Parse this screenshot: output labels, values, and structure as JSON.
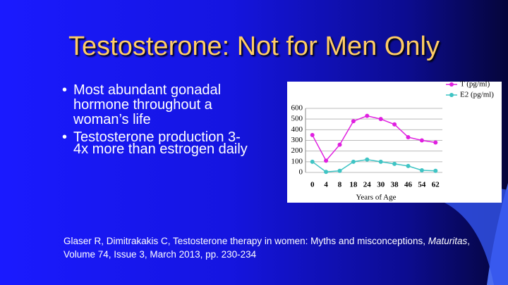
{
  "title": "Testosterone: Not for Men Only",
  "bullets": [
    "Most abundant gonadal hormone throughout a woman’s life",
    "Testosterone production 3-4x more than estrogen daily"
  ],
  "citation": {
    "before": "Glaser R, Dimitrakakis C, Testosterone therapy in women: Myths and misconceptions, ",
    "journal": "Maturitas",
    "after": ", Volume 74, Issue 3, March 2013, pp. 230-234"
  },
  "chart_data": {
    "type": "line",
    "x_label": "Years of Age",
    "categories": [
      "0",
      "4",
      "8",
      "18",
      "24",
      "30",
      "38",
      "46",
      "54",
      "62"
    ],
    "series": [
      {
        "name": "T (pg/ml)",
        "color": "#e020e0",
        "values": [
          350,
          110,
          260,
          480,
          530,
          500,
          450,
          330,
          300,
          280
        ]
      },
      {
        "name": "E2 (pg/ml)",
        "color": "#3fc4c4",
        "values": [
          100,
          5,
          15,
          100,
          120,
          100,
          80,
          60,
          20,
          15
        ]
      }
    ],
    "ylim": [
      0,
      600
    ],
    "yticks": [
      0,
      100,
      200,
      300,
      400,
      500,
      600
    ],
    "grid": true,
    "legend": "top-right"
  }
}
